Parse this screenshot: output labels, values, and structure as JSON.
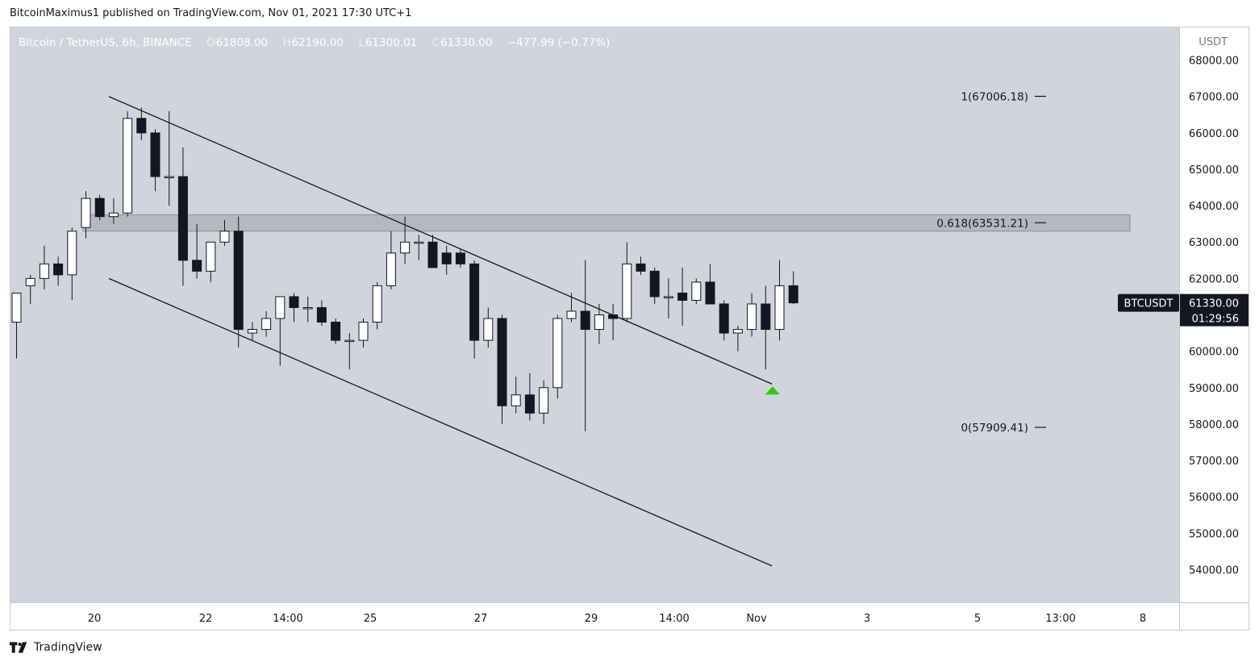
{
  "publisher": "BitcoinMaximus1 published on TradingView.com, Nov 01, 2021 17:30 UTC+1",
  "header": {
    "symbol": "Bitcoin / TetherUS, 6h, BINANCE",
    "open_label": "O",
    "open": "61808.00",
    "high_label": "H",
    "high": "62190.00",
    "low_label": "L",
    "low": "61300.01",
    "close_label": "C",
    "close": "61330.00",
    "change": "−477.99 (−0.77%)"
  },
  "price_axis": {
    "currency": "USDT",
    "ticks": [
      "54000.00",
      "55000.00",
      "56000.00",
      "57000.00",
      "58000.00",
      "59000.00",
      "60000.00",
      "62000.00",
      "63000.00",
      "64000.00",
      "65000.00",
      "66000.00",
      "67000.00",
      "68000.00"
    ],
    "symbol_label": "BTCUSDT",
    "last_price": "61330.00",
    "countdown": "01:29:56"
  },
  "footer": {
    "brand": "TradingView"
  },
  "colors": {
    "background": "#d1d4dc",
    "up": "#ffffff",
    "down": "#131722",
    "zone": "#b2b5be",
    "marker": "#2ecc00",
    "label_bg": "#131722"
  },
  "chart_data": {
    "type": "candlestick",
    "ylim": [
      53100,
      68900
    ],
    "x_ticks": [
      "20",
      "22",
      "14:00",
      "25",
      "27",
      "29",
      "14:00",
      "Nov",
      "3",
      "5",
      "13:00",
      "8"
    ],
    "candles": [
      {
        "o": 60800,
        "h": 61600,
        "l": 59800,
        "c": 61600
      },
      {
        "o": 61800,
        "h": 62100,
        "l": 61300,
        "c": 62000
      },
      {
        "o": 62000,
        "h": 62900,
        "l": 61700,
        "c": 62400
      },
      {
        "o": 62400,
        "h": 62600,
        "l": 61800,
        "c": 62100
      },
      {
        "o": 62100,
        "h": 63400,
        "l": 61400,
        "c": 63300
      },
      {
        "o": 63400,
        "h": 64400,
        "l": 63100,
        "c": 64200
      },
      {
        "o": 64200,
        "h": 64300,
        "l": 63600,
        "c": 63700
      },
      {
        "o": 63700,
        "h": 64200,
        "l": 63500,
        "c": 63800
      },
      {
        "o": 63800,
        "h": 66600,
        "l": 63700,
        "c": 66400
      },
      {
        "o": 66400,
        "h": 66700,
        "l": 65800,
        "c": 66000
      },
      {
        "o": 66000,
        "h": 66100,
        "l": 64400,
        "c": 64800
      },
      {
        "o": 64800,
        "h": 66600,
        "l": 64000,
        "c": 64800
      },
      {
        "o": 64800,
        "h": 65600,
        "l": 61800,
        "c": 62500
      },
      {
        "o": 62500,
        "h": 63500,
        "l": 62000,
        "c": 62200
      },
      {
        "o": 62200,
        "h": 63000,
        "l": 61900,
        "c": 63000
      },
      {
        "o": 63000,
        "h": 63600,
        "l": 62900,
        "c": 63300
      },
      {
        "o": 63300,
        "h": 63700,
        "l": 60100,
        "c": 60600
      },
      {
        "o": 60500,
        "h": 60800,
        "l": 60300,
        "c": 60600
      },
      {
        "o": 60600,
        "h": 61100,
        "l": 60400,
        "c": 60900
      },
      {
        "o": 60900,
        "h": 61500,
        "l": 59600,
        "c": 61500
      },
      {
        "o": 61500,
        "h": 61600,
        "l": 60800,
        "c": 61200
      },
      {
        "o": 61200,
        "h": 61500,
        "l": 60800,
        "c": 61200
      },
      {
        "o": 61200,
        "h": 61400,
        "l": 60700,
        "c": 60800
      },
      {
        "o": 60800,
        "h": 60900,
        "l": 60200,
        "c": 60300
      },
      {
        "o": 60300,
        "h": 60500,
        "l": 59500,
        "c": 60300
      },
      {
        "o": 60300,
        "h": 60900,
        "l": 60100,
        "c": 60800
      },
      {
        "o": 60800,
        "h": 61900,
        "l": 60600,
        "c": 61800
      },
      {
        "o": 61800,
        "h": 63300,
        "l": 61700,
        "c": 62700
      },
      {
        "o": 62700,
        "h": 63700,
        "l": 62400,
        "c": 63000
      },
      {
        "o": 63000,
        "h": 63200,
        "l": 62500,
        "c": 63000
      },
      {
        "o": 63000,
        "h": 63200,
        "l": 62300,
        "c": 62300
      },
      {
        "o": 62700,
        "h": 62900,
        "l": 62100,
        "c": 62400
      },
      {
        "o": 62700,
        "h": 62800,
        "l": 62300,
        "c": 62400
      },
      {
        "o": 62400,
        "h": 62500,
        "l": 59800,
        "c": 60300
      },
      {
        "o": 60300,
        "h": 61200,
        "l": 60100,
        "c": 60900
      },
      {
        "o": 60900,
        "h": 61000,
        "l": 58000,
        "c": 58500
      },
      {
        "o": 58500,
        "h": 59300,
        "l": 58300,
        "c": 58800
      },
      {
        "o": 58800,
        "h": 59400,
        "l": 58100,
        "c": 58300
      },
      {
        "o": 58300,
        "h": 59200,
        "l": 58000,
        "c": 59000
      },
      {
        "o": 59000,
        "h": 61000,
        "l": 58700,
        "c": 60900
      },
      {
        "o": 60900,
        "h": 61600,
        "l": 60800,
        "c": 61100
      },
      {
        "o": 61100,
        "h": 62500,
        "l": 57800,
        "c": 60600
      },
      {
        "o": 60600,
        "h": 61300,
        "l": 60200,
        "c": 61000
      },
      {
        "o": 61000,
        "h": 61300,
        "l": 60300,
        "c": 60900
      },
      {
        "o": 60900,
        "h": 63000,
        "l": 60800,
        "c": 62400
      },
      {
        "o": 62400,
        "h": 62600,
        "l": 62100,
        "c": 62200
      },
      {
        "o": 62200,
        "h": 62300,
        "l": 61300,
        "c": 61500
      },
      {
        "o": 61500,
        "h": 62000,
        "l": 60900,
        "c": 61500
      },
      {
        "o": 61600,
        "h": 62300,
        "l": 60700,
        "c": 61400
      },
      {
        "o": 61400,
        "h": 62000,
        "l": 61300,
        "c": 61900
      },
      {
        "o": 61900,
        "h": 62400,
        "l": 61300,
        "c": 61300
      },
      {
        "o": 61300,
        "h": 61400,
        "l": 60300,
        "c": 60500
      },
      {
        "o": 60500,
        "h": 60700,
        "l": 60000,
        "c": 60600
      },
      {
        "o": 60600,
        "h": 61600,
        "l": 60400,
        "c": 61300
      },
      {
        "o": 61300,
        "h": 61800,
        "l": 59500,
        "c": 60600
      },
      {
        "o": 60600,
        "h": 62500,
        "l": 60300,
        "c": 61800
      },
      {
        "o": 61800,
        "h": 62200,
        "l": 61300,
        "c": 61330
      }
    ],
    "fib_levels": [
      {
        "label": "1(67006.18)",
        "value": 67006.18
      },
      {
        "label": "0.618(63531.21)",
        "value": 63531.21
      },
      {
        "label": "0(57909.41)",
        "value": 57909.41
      }
    ],
    "zone": {
      "low": 63300,
      "high": 63750
    },
    "channel": {
      "upper": [
        [
          0,
          67000
        ],
        [
          47.8,
          59100
        ]
      ],
      "lower": [
        [
          0,
          62000
        ],
        [
          47.8,
          54100
        ]
      ]
    },
    "marker": {
      "index": 54.5,
      "value": 58900
    }
  }
}
